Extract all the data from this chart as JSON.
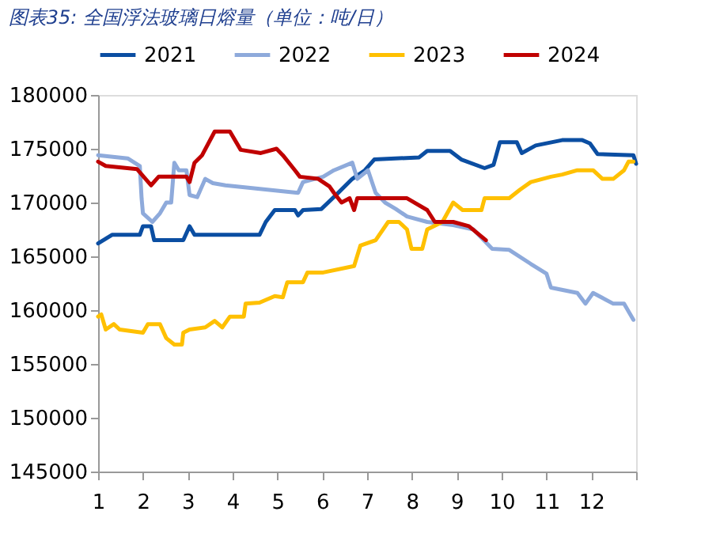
{
  "chart_data": {
    "type": "line",
    "title": "图表35: 全国浮法玻璃日熔量（单位：吨/日）",
    "xlim": [
      1,
      13
    ],
    "xticks": [
      1,
      2,
      3,
      4,
      5,
      6,
      7,
      8,
      9,
      10,
      11,
      12,
      {
        "value": 13,
        "label": null
      }
    ],
    "ylim": [
      145000,
      180000
    ],
    "yticks": [
      145000,
      150000,
      155000,
      160000,
      165000,
      170000,
      175000,
      180000
    ],
    "grid": false,
    "legend": "top",
    "marker": "none",
    "line_style": "solid",
    "series": [
      {
        "name": "2021",
        "color": "#0b4ea2",
        "x": [
          1.0,
          1.31,
          1.93,
          2.0,
          2.18,
          2.25,
          2.9,
          3.04,
          3.15,
          4.6,
          4.74,
          4.94,
          5.39,
          5.46,
          5.57,
          5.98,
          6.33,
          6.67,
          6.95,
          7.16,
          8.16,
          8.34,
          8.85,
          9.1,
          9.62,
          9.82,
          9.96,
          10.34,
          10.45,
          10.76,
          11.35,
          11.8,
          11.97,
          12.14,
          12.94,
          13.0
        ],
        "values": [
          166200,
          167000,
          167000,
          167800,
          167800,
          166500,
          166500,
          167800,
          167000,
          167000,
          168200,
          169300,
          169300,
          168800,
          169300,
          169400,
          170800,
          172200,
          173000,
          174000,
          174200,
          174800,
          174800,
          174000,
          173200,
          173500,
          175600,
          175600,
          174600,
          175300,
          175800,
          175800,
          175500,
          174500,
          174400,
          173600
        ]
      },
      {
        "name": "2022",
        "color": "#8eaadb",
        "x": [
          1.0,
          1.66,
          1.93,
          1.97,
          2.0,
          2.21,
          2.38,
          2.52,
          2.63,
          2.7,
          2.8,
          2.97,
          3.04,
          3.21,
          3.39,
          3.56,
          3.84,
          5.46,
          5.57,
          6.02,
          6.26,
          6.67,
          6.78,
          7.02,
          7.19,
          7.4,
          7.64,
          7.89,
          8.34,
          8.92,
          9.37,
          9.79,
          10.17,
          10.65,
          11.0,
          11.1,
          11.69,
          11.87,
          12.04,
          12.49,
          12.73,
          12.94
        ],
        "values": [
          174400,
          174100,
          173400,
          170400,
          169000,
          168200,
          169000,
          170000,
          170000,
          173700,
          173000,
          173000,
          170700,
          170500,
          172200,
          171800,
          171600,
          170900,
          171900,
          172400,
          173000,
          173700,
          172200,
          173000,
          170900,
          170000,
          169400,
          168700,
          168200,
          167900,
          167500,
          165700,
          165600,
          164300,
          163400,
          162100,
          161600,
          160600,
          161600,
          160600,
          160600,
          159100
        ]
      },
      {
        "name": "2023",
        "color": "#ffc000",
        "x": [
          1.0,
          1.07,
          1.17,
          1.35,
          1.48,
          2.0,
          2.11,
          2.38,
          2.52,
          2.7,
          2.87,
          2.9,
          3.04,
          3.39,
          3.6,
          3.77,
          3.94,
          4.25,
          4.29,
          4.6,
          4.94,
          5.12,
          5.22,
          5.57,
          5.67,
          6.02,
          6.71,
          6.85,
          7.19,
          7.47,
          7.71,
          7.89,
          7.99,
          8.23,
          8.34,
          8.68,
          8.92,
          9.13,
          9.55,
          9.62,
          10.17,
          10.41,
          10.65,
          11.1,
          11.35,
          11.69,
          12.04,
          12.25,
          12.49,
          12.73,
          12.83,
          12.94
        ],
        "values": [
          159400,
          159600,
          158200,
          158700,
          158200,
          157900,
          158700,
          158700,
          157400,
          156800,
          156800,
          157900,
          158200,
          158400,
          159000,
          158400,
          159400,
          159400,
          160600,
          160700,
          161300,
          161200,
          162600,
          162600,
          163500,
          163500,
          164100,
          166000,
          166500,
          168200,
          168200,
          167500,
          165700,
          165700,
          167500,
          168200,
          170000,
          169300,
          169300,
          170400,
          170400,
          171200,
          171900,
          172400,
          172600,
          173000,
          173000,
          172200,
          172200,
          173000,
          173800,
          173800
        ]
      },
      {
        "name": "2024",
        "color": "#c00000",
        "x": [
          1.0,
          1.17,
          1.87,
          2.18,
          2.35,
          2.97,
          3.04,
          3.15,
          3.32,
          3.6,
          3.94,
          4.18,
          4.63,
          4.98,
          5.12,
          5.39,
          5.5,
          5.91,
          6.16,
          6.26,
          6.43,
          6.61,
          6.71,
          6.78,
          7.89,
          8.34,
          8.51,
          8.92,
          9.27,
          9.65
        ],
        "values": [
          173800,
          173400,
          173100,
          171600,
          172400,
          172400,
          171900,
          173700,
          174400,
          176600,
          176600,
          174900,
          174600,
          175000,
          174400,
          173000,
          172400,
          172200,
          171500,
          170900,
          170000,
          170400,
          169300,
          170400,
          170400,
          169300,
          168200,
          168200,
          167800,
          166500
        ]
      }
    ]
  }
}
